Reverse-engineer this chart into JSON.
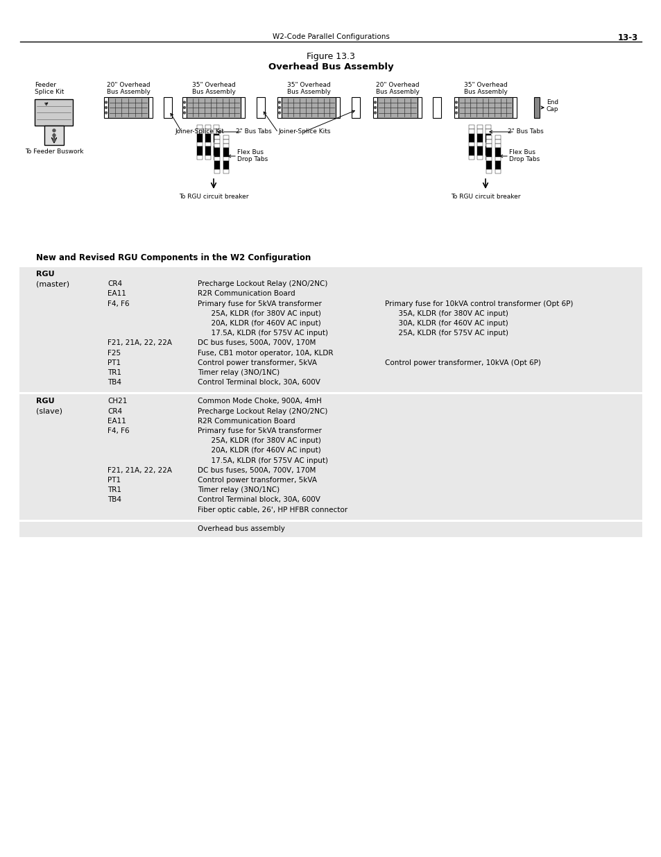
{
  "header_text": "W2-Code Parallel Configurations",
  "page_number": "13-3",
  "fig_title_line1": "Figure 13.3",
  "fig_title_line2": "Overhead Bus Assembly",
  "section_header": "New and Revised RGU Components in the W2 Configuration",
  "table_bg": "#e8e8e8",
  "rgu_master_rows": [
    {
      "col1": "RGU",
      "col2": "",
      "col3": "",
      "col4": "",
      "bold1": true
    },
    {
      "col1": "(master)",
      "col2": "CR4",
      "col3": "Precharge Lockout Relay (2NO/2NC)",
      "col4": ""
    },
    {
      "col1": "",
      "col2": "EA11",
      "col3": "R2R Communication Board",
      "col4": ""
    },
    {
      "col1": "",
      "col2": "F4, F6",
      "col3": "Primary fuse for 5kVA transformer",
      "col4": "Primary fuse for 10kVA control transformer (Opt 6P)"
    },
    {
      "col1": "",
      "col2": "",
      "col3": "      25A, KLDR (for 380V AC input)",
      "col4": "      35A, KLDR (for 380V AC input)"
    },
    {
      "col1": "",
      "col2": "",
      "col3": "      20A, KLDR (for 460V AC input)",
      "col4": "      30A, KLDR (for 460V AC input)"
    },
    {
      "col1": "",
      "col2": "",
      "col3": "      17.5A, KLDR (for 575V AC input)",
      "col4": "      25A, KLDR (for 575V AC input)"
    },
    {
      "col1": "",
      "col2": "F21, 21A, 22, 22A",
      "col3": "DC bus fuses, 500A, 700V, 170M",
      "col4": ""
    },
    {
      "col1": "",
      "col2": "F25",
      "col3": "Fuse, CB1 motor operator, 10A, KLDR",
      "col4": ""
    },
    {
      "col1": "",
      "col2": "PT1",
      "col3": "Control power transformer, 5kVA",
      "col4": "Control power transformer, 10kVA (Opt 6P)"
    },
    {
      "col1": "",
      "col2": "TR1",
      "col3": "Timer relay (3NO/1NC)",
      "col4": ""
    },
    {
      "col1": "",
      "col2": "TB4",
      "col3": "Control Terminal block, 30A, 600V",
      "col4": ""
    }
  ],
  "rgu_slave_rows": [
    {
      "col1": "RGU",
      "col2": "CH21",
      "col3": "Common Mode Choke, 900A, 4mH",
      "col4": "",
      "bold1": true
    },
    {
      "col1": "(slave)",
      "col2": "CR4",
      "col3": "Precharge Lockout Relay (2NO/2NC)",
      "col4": ""
    },
    {
      "col1": "",
      "col2": "EA11",
      "col3": "R2R Communication Board",
      "col4": ""
    },
    {
      "col1": "",
      "col2": "F4, F6",
      "col3": "Primary fuse for 5kVA transformer",
      "col4": ""
    },
    {
      "col1": "",
      "col2": "",
      "col3": "      25A, KLDR (for 380V AC input)",
      "col4": ""
    },
    {
      "col1": "",
      "col2": "",
      "col3": "      20A, KLDR (for 460V AC input)",
      "col4": ""
    },
    {
      "col1": "",
      "col2": "",
      "col3": "      17.5A, KLDR (for 575V AC input)",
      "col4": ""
    },
    {
      "col1": "",
      "col2": "F21, 21A, 22, 22A",
      "col3": "DC bus fuses, 500A, 700V, 170M",
      "col4": ""
    },
    {
      "col1": "",
      "col2": "PT1",
      "col3": "Control power transformer, 5kVA",
      "col4": ""
    },
    {
      "col1": "",
      "col2": "TR1",
      "col3": "Timer relay (3NO/1NC)",
      "col4": ""
    },
    {
      "col1": "",
      "col2": "TB4",
      "col3": "Control Terminal block, 30A, 600V",
      "col4": ""
    },
    {
      "col1": "",
      "col2": "",
      "col3": "Fiber optic cable, 26', HP HFBR connector",
      "col4": ""
    }
  ],
  "last_row": "Overhead bus assembly"
}
